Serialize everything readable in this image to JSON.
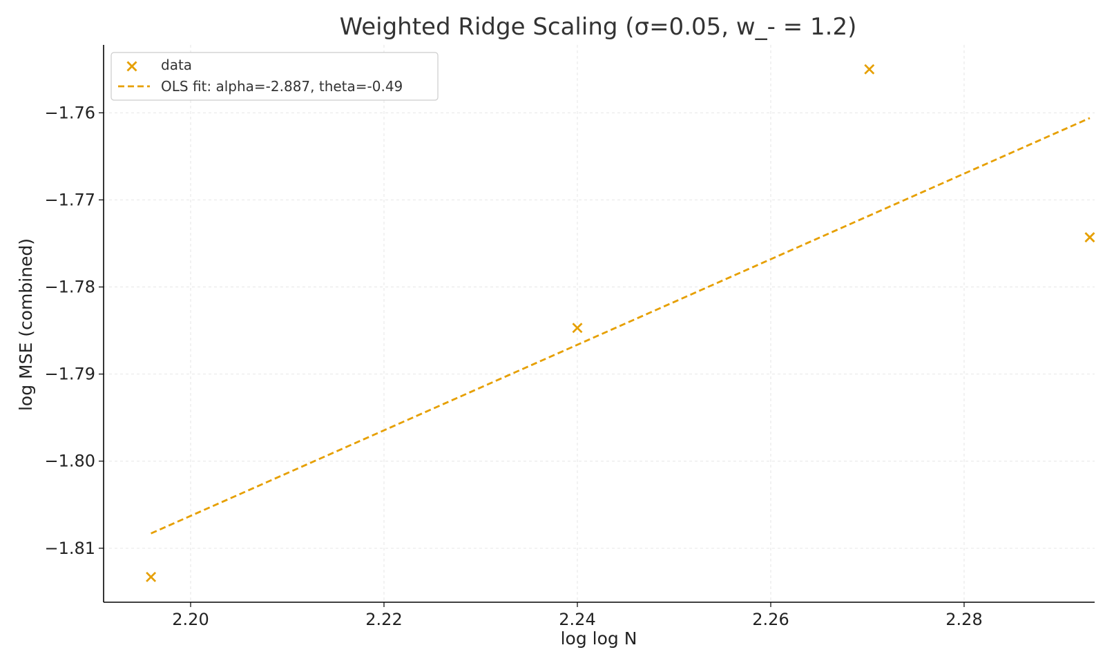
{
  "chart_data": {
    "type": "scatter",
    "title": "Weighted Ridge Scaling (σ=0.05, w_- = 1.2)",
    "xlabel": "log log N",
    "ylabel": "log MSE (combined)",
    "xlim": [
      2.191,
      2.2935
    ],
    "ylim": [
      -1.8162,
      -1.7522
    ],
    "xticks": [
      2.2,
      2.22,
      2.24,
      2.26,
      2.28
    ],
    "xtick_labels": [
      "2.20",
      "2.22",
      "2.24",
      "2.26",
      "2.28"
    ],
    "yticks": [
      -1.76,
      -1.77,
      -1.78,
      -1.79,
      -1.8,
      -1.81
    ],
    "ytick_labels": [
      "−1.76",
      "−1.77",
      "−1.78",
      "−1.79",
      "−1.80",
      "−1.81"
    ],
    "grid": true,
    "legend_position": "top-left",
    "color": "#E69F00",
    "series": [
      {
        "name": "data",
        "kind": "scatter",
        "marker": "x",
        "x": [
          2.1959,
          2.24,
          2.2702,
          2.293
        ],
        "y": [
          -1.8133,
          -1.7847,
          -1.755,
          -1.7743
        ]
      },
      {
        "name": "OLS fit: alpha=-2.887, theta=-0.49",
        "kind": "line",
        "style": "dashed",
        "x": [
          2.1959,
          2.293
        ],
        "y": [
          -1.8083,
          -1.7606
        ]
      }
    ]
  }
}
